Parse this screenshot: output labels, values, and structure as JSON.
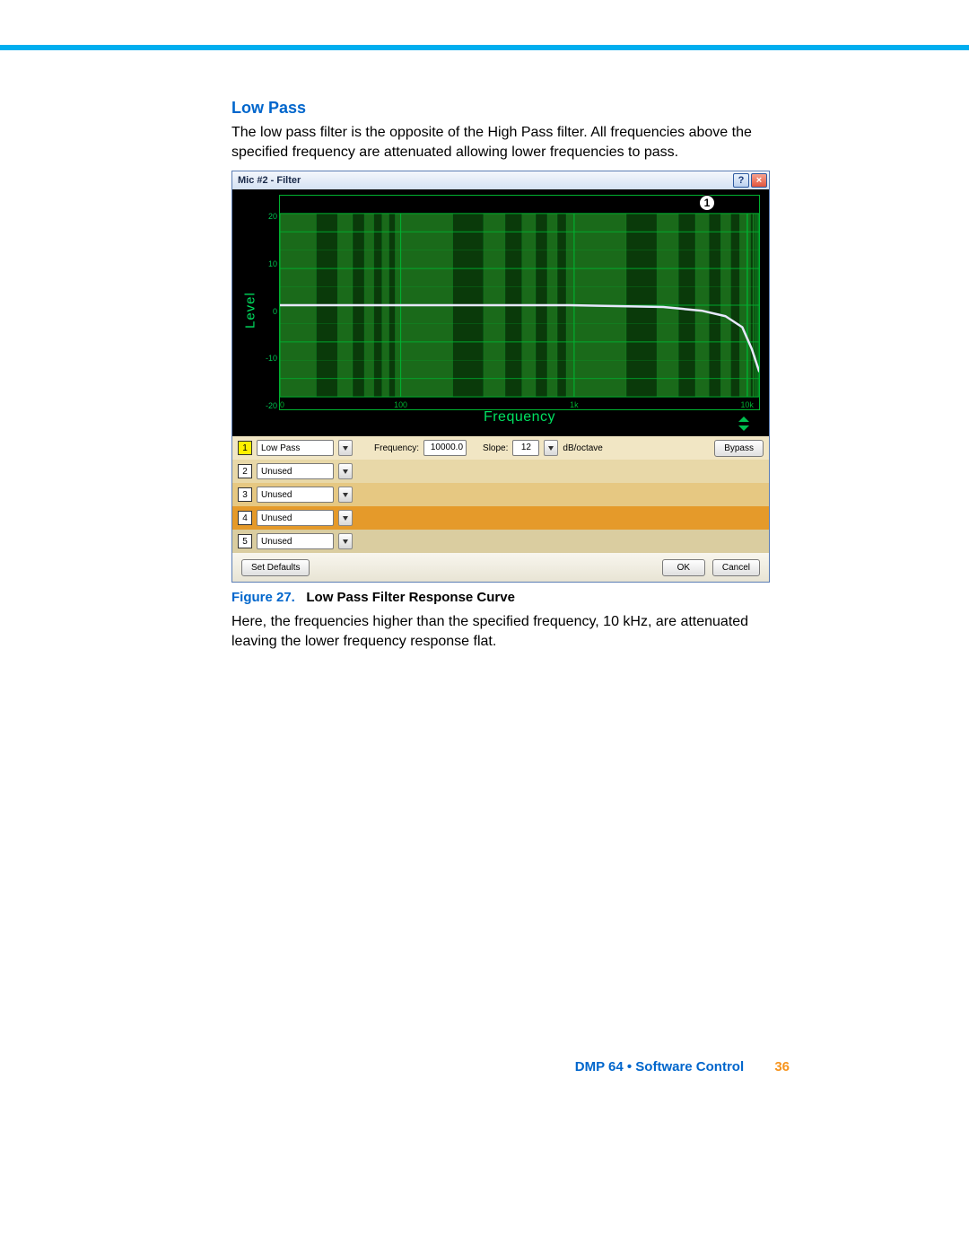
{
  "doc": {
    "heading": "Low Pass",
    "intro": "The low pass filter is the opposite of the High Pass filter. All frequencies above the specified frequency are attenuated allowing lower frequencies to pass.",
    "fig_num": "Figure 27.",
    "fig_title": "Low Pass Filter Response Curve",
    "outro": "Here, the frequencies higher than the specified frequency, 10 kHz, are attenuated leaving the lower frequency response flat.",
    "footer_left": "DMP 64 • Software Control",
    "footer_page": "36"
  },
  "window": {
    "title": "Mic #2 - Filter",
    "help": "?",
    "close": "×",
    "marker": "1"
  },
  "chart": {
    "type": "line",
    "y_label": "Level",
    "x_label": "Frequency",
    "y_ticks": [
      "20",
      "10",
      "0",
      "-10",
      "-20"
    ],
    "x_ticks": [
      {
        "pos": 0.0,
        "label": "20"
      },
      {
        "pos": 0.252,
        "label": "100"
      },
      {
        "pos": 0.614,
        "label": "1k"
      },
      {
        "pos": 0.975,
        "label": "10k"
      }
    ],
    "ylim": [
      -25,
      25
    ],
    "xlim_log": [
      20,
      20000
    ],
    "cutoff_hz": 10000,
    "grid_color": "#00b030",
    "major_band_color": "#1a6a1a",
    "minor_band_color": "#0a3a0a",
    "axis_label_color": "#00e060",
    "line_color": "#e8e8ff",
    "line_width": 2.5,
    "background_color": "#000000",
    "log_scale_x": true,
    "log_decade_bounds": [
      0.0,
      0.252,
      0.614,
      0.975,
      1.0
    ],
    "log_decade_spans": [
      0.252,
      0.362,
      0.362,
      0.025
    ],
    "response_curve": [
      {
        "x": 0.0,
        "y": 0.0
      },
      {
        "x": 0.6,
        "y": 0.0
      },
      {
        "x": 0.8,
        "y": -0.5
      },
      {
        "x": 0.88,
        "y": -1.5
      },
      {
        "x": 0.93,
        "y": -3.0
      },
      {
        "x": 0.965,
        "y": -6.0
      },
      {
        "x": 0.985,
        "y": -12.0
      },
      {
        "x": 1.0,
        "y": -18.0
      }
    ]
  },
  "filters": {
    "rows": [
      {
        "n": "1",
        "type": "Low Pass",
        "active": true,
        "freq_label": "Frequency:",
        "freq": "10000.0",
        "slope_label": "Slope:",
        "slope": "12",
        "slope_unit": "dB/octave",
        "bypass": "Bypass"
      },
      {
        "n": "2",
        "type": "Unused",
        "active": false
      },
      {
        "n": "3",
        "type": "Unused",
        "active": false
      },
      {
        "n": "4",
        "type": "Unused",
        "active": false
      },
      {
        "n": "5",
        "type": "Unused",
        "active": false
      }
    ],
    "row_bg_class": [
      "row-bg-1",
      "row-bg-2",
      "row-bg-3",
      "row-bg-4",
      "row-bg-5"
    ]
  },
  "buttons": {
    "defaults": "Set Defaults",
    "ok": "OK",
    "cancel": "Cancel"
  }
}
